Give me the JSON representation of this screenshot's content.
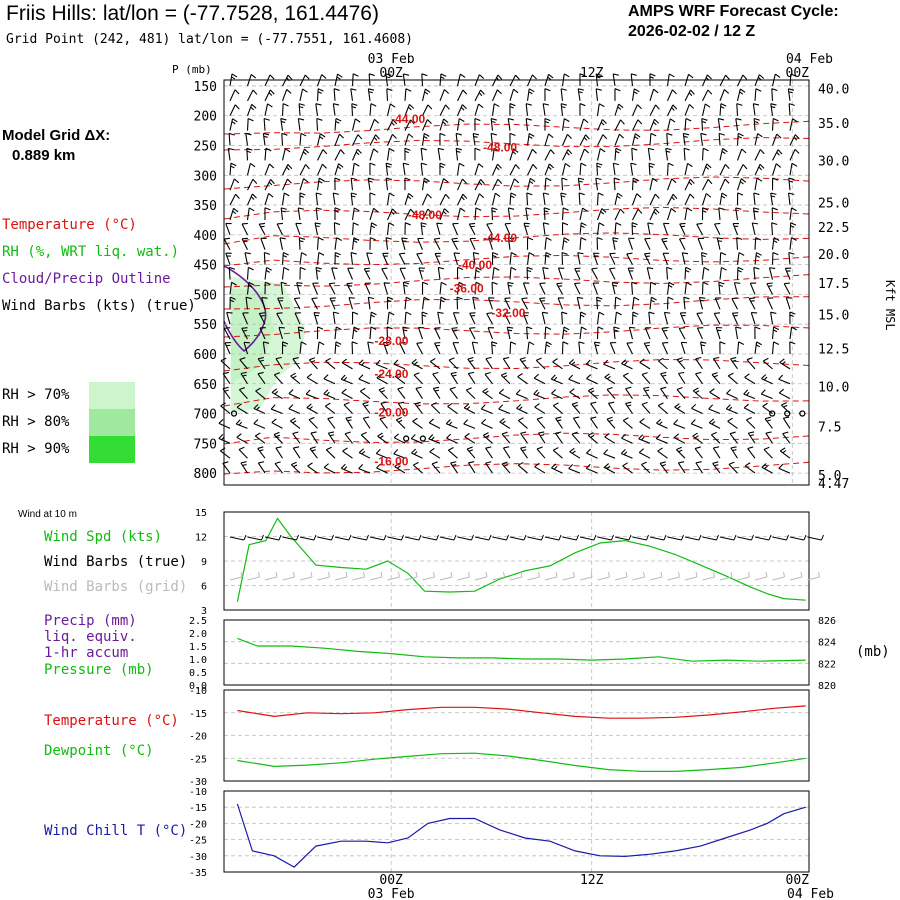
{
  "header": {
    "title": "Friis Hills:  lat/lon = (-77.7528, 161.4476)",
    "grid_point": "Grid Point (242, 481) lat/lon = (-77.7551, 161.4608)",
    "forecast_label": "AMPS WRF Forecast Cycle:",
    "forecast_cycle": "2026-02-02 / 12  Z",
    "model_grid_label": "Model Grid ΔX:",
    "model_grid_value": "0.889 km"
  },
  "legend": {
    "temperature": "Temperature (°C)",
    "rh": "RH (%, WRT liq. wat.)",
    "cloud": "Cloud/Precip Outline",
    "wind_barbs": "Wind Barbs (kts) (true)",
    "rh_levels": [
      {
        "label": "RH > 70%",
        "color": "#ccf5cc"
      },
      {
        "label": "RH > 80%",
        "color": "#a0e8a0"
      },
      {
        "label": "RH > 90%",
        "color": "#33dd33"
      }
    ]
  },
  "colors": {
    "temperature": "#dd1111",
    "rh": "#11bb11",
    "cloud": "#6a1b9a",
    "windchill": "#1a1aa8",
    "gridline": "#bbbbbb"
  },
  "chart_data": [
    {
      "type": "heatmap",
      "name": "upper-air-cross-section",
      "p_axis_label": "P (mb)",
      "p_ticks": [
        150,
        200,
        250,
        300,
        350,
        400,
        450,
        500,
        550,
        600,
        650,
        700,
        750,
        800
      ],
      "p_range": [
        140,
        820
      ],
      "time_labels_top": [
        {
          "t": 0,
          "label": "00Z",
          "date": "03 Feb"
        },
        {
          "t": 12,
          "label": "12Z",
          "date": ""
        },
        {
          "t": 24,
          "label": "00Z",
          "date": "04 Feb"
        }
      ],
      "t_range": [
        -10,
        25
      ],
      "kft_axis_label": "Kft MSL",
      "kft_ticks": [
        {
          "p": 154,
          "label": "40.0"
        },
        {
          "p": 212,
          "label": "35.0"
        },
        {
          "p": 275,
          "label": "30.0"
        },
        {
          "p": 346,
          "label": "25.0"
        },
        {
          "p": 387,
          "label": "22.5"
        },
        {
          "p": 432,
          "label": "20.0"
        },
        {
          "p": 481,
          "label": "17.5"
        },
        {
          "p": 534,
          "label": "15.0"
        },
        {
          "p": 591,
          "label": "12.5"
        },
        {
          "p": 655,
          "label": "10.0"
        },
        {
          "p": 722,
          "label": "7.5"
        },
        {
          "p": 803,
          "label": "5.0"
        },
        {
          "p": 817,
          "label": "4.47"
        }
      ],
      "isotherm_labels": [
        {
          "t": 0,
          "p": 212,
          "label": "-44.00"
        },
        {
          "t": 5.5,
          "p": 260,
          "label": "-48.00"
        },
        {
          "t": 1,
          "p": 373,
          "label": "-48.00"
        },
        {
          "t": 5.5,
          "p": 412,
          "label": "-44.00"
        },
        {
          "t": 4,
          "p": 457,
          "label": "-40.00"
        },
        {
          "t": 3.5,
          "p": 497,
          "label": "-36.00"
        },
        {
          "t": 6,
          "p": 538,
          "label": "-32.00"
        },
        {
          "t": -1,
          "p": 585,
          "label": "-28.00"
        },
        {
          "t": -1,
          "p": 640,
          "label": "-24.00"
        },
        {
          "t": -1,
          "p": 705,
          "label": "-20.00"
        },
        {
          "t": -1,
          "p": 787,
          "label": "-16.00"
        }
      ]
    },
    {
      "type": "line",
      "name": "wind-speed-10m",
      "header": "Wind at 10 m",
      "labels": [
        "Wind Spd (kts)",
        "Wind Barbs (true)",
        "Wind Barbs (grid)"
      ],
      "ylim": [
        3,
        15
      ],
      "yticks": [
        3,
        6,
        9,
        12,
        15
      ],
      "x": [
        -9.2,
        -8.5,
        -7.5,
        -6.8,
        -6,
        -4.5,
        -3,
        -1.5,
        -0.2,
        1,
        2,
        3.5,
        5,
        6.5,
        8,
        9.5,
        11,
        12.5,
        14,
        15.5,
        17,
        18.5,
        20,
        21.5,
        22.5,
        23.5,
        24.8
      ],
      "values": [
        4,
        11,
        11.5,
        14.2,
        12,
        8.5,
        8.2,
        8,
        9,
        7.5,
        5.3,
        5.2,
        5.3,
        6.8,
        7.8,
        8.4,
        10,
        11.2,
        11.5,
        10.8,
        9.8,
        8.5,
        7.2,
        5.8,
        5,
        4.4,
        4.2
      ]
    },
    {
      "type": "line",
      "name": "pressure-precip",
      "labels": [
        "Precip (mm)",
        "liq. equiv.",
        "1-hr accum",
        "Pressure (mb)"
      ],
      "precip_axis": [
        0,
        0.5,
        1.0,
        1.5,
        2.0,
        2.5
      ],
      "ylim": [
        820,
        826
      ],
      "yticks": [
        820,
        822,
        824,
        826
      ],
      "right_label": "(mb)",
      "x": [
        -9.2,
        -8,
        -6,
        -4,
        -2,
        0,
        2,
        4,
        6,
        8,
        10,
        12,
        14,
        16,
        18,
        20,
        22,
        24.8
      ],
      "values": [
        824.3,
        823.6,
        823.6,
        823.4,
        823.1,
        822.9,
        822.6,
        822.5,
        822.5,
        822.4,
        822.4,
        822.3,
        822.4,
        822.6,
        822.2,
        822.3,
        822.2,
        822.3
      ]
    },
    {
      "type": "line",
      "name": "temperature-dewpoint",
      "labels": [
        "Temperature (°C)",
        "Dewpoint (°C)"
      ],
      "ylim": [
        -30,
        -10
      ],
      "yticks": [
        -30,
        -25,
        -20,
        -15,
        -10
      ],
      "x": [
        -9.2,
        -7,
        -5,
        -3,
        -1,
        1,
        3,
        5,
        7,
        9,
        11,
        13,
        15,
        17,
        19,
        21,
        23,
        24.8
      ],
      "series": [
        {
          "name": "Temperature",
          "values": [
            -14.5,
            -15.8,
            -15,
            -15.2,
            -15.0,
            -14.3,
            -13.8,
            -13.8,
            -14.2,
            -15,
            -15.8,
            -16.2,
            -16.2,
            -16,
            -15.5,
            -14.8,
            -14,
            -13.5
          ]
        },
        {
          "name": "Dewpoint",
          "values": [
            -25.5,
            -26.8,
            -26.5,
            -26,
            -25.2,
            -24.6,
            -24,
            -23.9,
            -24.5,
            -25.5,
            -26.6,
            -27.5,
            -27.9,
            -27.9,
            -27.5,
            -27,
            -26,
            -25
          ]
        }
      ]
    },
    {
      "type": "line",
      "name": "wind-chill",
      "labels": [
        "Wind Chill T (°C)"
      ],
      "ylim": [
        -35,
        -10
      ],
      "yticks": [
        -35,
        -30,
        -25,
        -20,
        -15,
        -10
      ],
      "x": [
        -9.2,
        -8.3,
        -7,
        -5.8,
        -4.5,
        -3,
        -1.5,
        -0.2,
        1,
        2.2,
        3.5,
        5,
        6.5,
        8,
        9.5,
        11,
        12.5,
        14,
        15.5,
        17,
        18.5,
        20,
        21.5,
        22.5,
        23.5,
        24.8
      ],
      "values": [
        -14,
        -28.5,
        -30,
        -33.5,
        -27,
        -25.5,
        -25.5,
        -26,
        -24.5,
        -20,
        -18.5,
        -18.5,
        -22,
        -24.5,
        -25.5,
        -28.5,
        -30,
        -30.2,
        -29.5,
        -28.5,
        -27,
        -24.5,
        -22,
        -20,
        -17,
        -15
      ]
    }
  ],
  "bottom_axis": [
    {
      "t": 0,
      "label": "00Z",
      "date": "03 Feb"
    },
    {
      "t": 12,
      "label": "12Z",
      "date": ""
    },
    {
      "t": 24,
      "label": "00Z",
      "date": "04 Feb"
    }
  ]
}
